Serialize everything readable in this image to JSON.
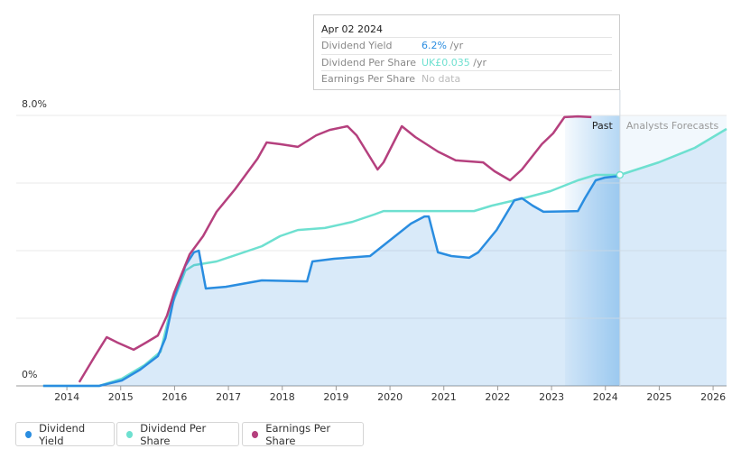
{
  "chart_data": {
    "type": "line",
    "xlim": [
      2013.06,
      2026.25
    ],
    "xticks": [
      2014,
      2015,
      2016,
      2017,
      2018,
      2019,
      2020,
      2021,
      2022,
      2023,
      2024,
      2025,
      2026
    ],
    "ylim": [
      0,
      8
    ],
    "yticks": [
      {
        "value": 0,
        "label": "0%"
      },
      {
        "value": 8,
        "label": "8.0%"
      }
    ],
    "grid_lines": [
      2,
      4,
      6,
      8
    ],
    "grid": true,
    "past_band": [
      2023.25,
      2024.27
    ],
    "past_label": "Past",
    "forecast_label": "Analysts Forecasts",
    "series": [
      {
        "name": "Dividend Yield",
        "color": "#2a8de0",
        "area": true,
        "x": [
          2013.56,
          2014.6,
          2015.02,
          2015.36,
          2015.69,
          2015.83,
          2015.99,
          2016.2,
          2016.36,
          2016.45,
          2016.58,
          2016.95,
          2017.62,
          2018.46,
          2018.56,
          2018.96,
          2019.63,
          2019.97,
          2020.39,
          2020.64,
          2020.72,
          2020.89,
          2021.14,
          2021.47,
          2021.64,
          2021.98,
          2022.31,
          2022.45,
          2022.65,
          2022.85,
          2023.49,
          2023.62,
          2023.82,
          2023.99,
          2024.27
        ],
        "values": [
          0,
          0,
          0.16,
          0.48,
          0.88,
          1.41,
          2.61,
          3.55,
          3.95,
          4.0,
          2.88,
          2.93,
          3.12,
          3.09,
          3.68,
          3.76,
          3.84,
          4.27,
          4.8,
          5.01,
          5.01,
          3.95,
          3.84,
          3.79,
          3.95,
          4.61,
          5.49,
          5.55,
          5.33,
          5.15,
          5.17,
          5.55,
          6.08,
          6.16,
          6.21
        ]
      },
      {
        "name": "Dividend Per Share",
        "color": "#6ee0d0",
        "x": [
          2013.56,
          2014.6,
          2015.02,
          2015.44,
          2015.74,
          2015.94,
          2016.2,
          2016.36,
          2016.78,
          2017.62,
          2017.96,
          2018.29,
          2018.79,
          2019.3,
          2019.71,
          2019.88,
          2021.56,
          2021.89,
          2022.48,
          2022.98,
          2023.49,
          2023.82,
          2024.27,
          2024.99,
          2025.66,
          2026.25
        ],
        "values": [
          0,
          0,
          0.21,
          0.61,
          1.01,
          2.35,
          3.41,
          3.57,
          3.68,
          4.13,
          4.43,
          4.61,
          4.67,
          4.85,
          5.07,
          5.17,
          5.17,
          5.33,
          5.55,
          5.76,
          6.08,
          6.24,
          6.24,
          6.61,
          7.04,
          7.6
        ]
      },
      {
        "name": "Earnings Per Share",
        "color": "#b5407e",
        "x": [
          2014.23,
          2014.52,
          2014.74,
          2014.94,
          2015.24,
          2015.47,
          2015.69,
          2015.86,
          2015.99,
          2016.28,
          2016.53,
          2016.78,
          2017.12,
          2017.54,
          2017.71,
          2017.96,
          2018.29,
          2018.63,
          2018.88,
          2019.21,
          2019.38,
          2019.77,
          2019.88,
          2020.22,
          2020.47,
          2020.89,
          2021.22,
          2021.73,
          2021.94,
          2022.23,
          2022.45,
          2022.82,
          2023.03,
          2023.24,
          2023.49,
          2023.74
        ],
        "values": [
          0.11,
          0.88,
          1.44,
          1.28,
          1.07,
          1.28,
          1.49,
          2.08,
          2.75,
          3.89,
          4.43,
          5.15,
          5.81,
          6.72,
          7.2,
          7.15,
          7.07,
          7.41,
          7.57,
          7.68,
          7.41,
          6.4,
          6.61,
          7.68,
          7.36,
          6.93,
          6.67,
          6.61,
          6.35,
          6.08,
          6.4,
          7.15,
          7.47,
          7.95,
          7.97,
          7.95
        ]
      }
    ]
  },
  "tooltip": {
    "date": "Apr 02 2024",
    "rows": [
      [
        "Dividend Yield",
        "6.2%",
        "/yr"
      ],
      [
        "Dividend Per Share",
        "UK£0.035",
        "/yr"
      ],
      [
        "Earnings Per Share",
        "No data"
      ]
    ]
  }
}
